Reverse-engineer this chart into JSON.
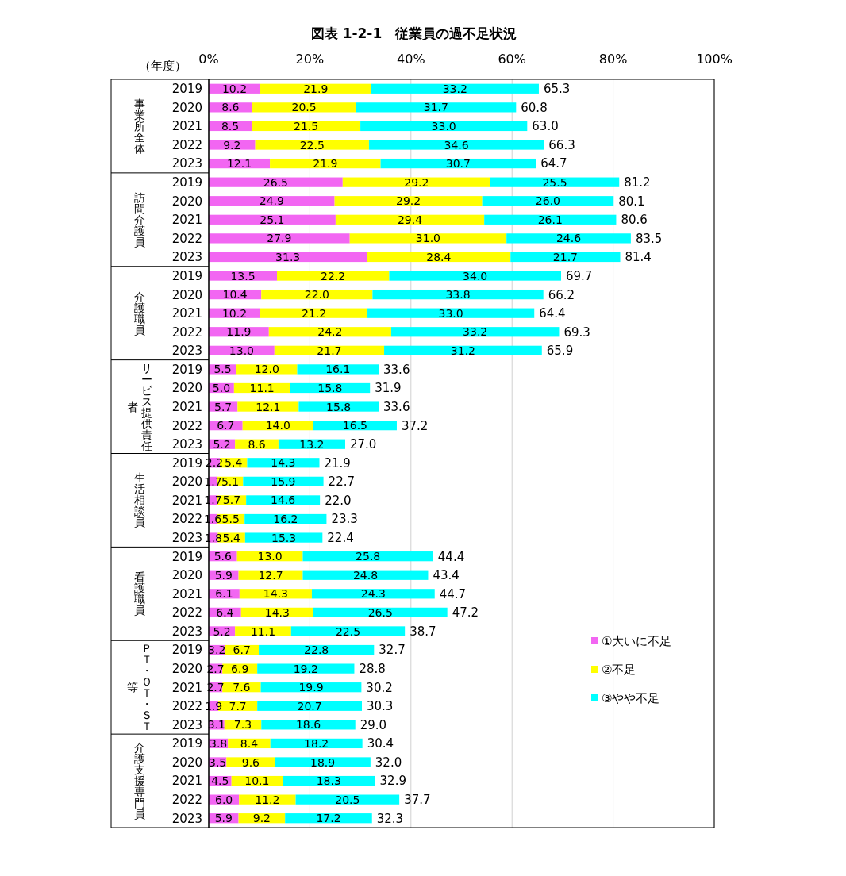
{
  "chart_data": {
    "type": "bar",
    "orientation": "horizontal",
    "stacked": true,
    "title": "図表 1-2-1　従業員の過不足状況",
    "ylabel": "（年度）",
    "categories": [
      "2019",
      "2020",
      "2021",
      "2022",
      "2023",
      "2019",
      "2020",
      "2021",
      "2022",
      "2023",
      "2019",
      "2020",
      "2021",
      "2022",
      "2023",
      "2019",
      "2020",
      "2021",
      "2022",
      "2023",
      "2019",
      "2020",
      "2021",
      "2022",
      "2023",
      "2019",
      "2020",
      "2021",
      "2022",
      "2023",
      "2019",
      "2020",
      "2021",
      "2022",
      "2023",
      "2019",
      "2020",
      "2021",
      "2022",
      "2023"
    ],
    "annotations": [
      "事業所全体",
      "訪問介護員",
      "介護職員",
      "サービス提供責任者",
      "生活相談員",
      "看護職員",
      "ＰＴ・ＯＴ・ＳＴ等",
      "介護支援専門員"
    ],
    "series": [
      {
        "name": "①大いに不足",
        "color": "#f266f2",
        "values": [
          10.2,
          8.6,
          8.5,
          9.2,
          12.1,
          26.5,
          24.9,
          25.1,
          27.9,
          31.3,
          13.5,
          10.4,
          10.2,
          11.9,
          13.0,
          5.5,
          5.0,
          5.7,
          6.7,
          5.2,
          2.2,
          1.7,
          1.7,
          1.6,
          1.8,
          5.6,
          5.9,
          6.1,
          6.4,
          5.2,
          3.2,
          2.7,
          2.7,
          1.9,
          3.1,
          3.8,
          3.5,
          4.5,
          6.0,
          5.9
        ],
        "value_labels": [
          "10.2",
          "8.6",
          "8.5",
          "9.2",
          "12.1",
          "26.5",
          "24.9",
          "25.1",
          "27.9",
          "31.3",
          "13.5",
          "10.4",
          "10.2",
          "11.9",
          "13.0",
          "5.5",
          "5.0",
          "5.7",
          "6.7",
          "5.2",
          "2.2",
          "1.7",
          "1.7",
          "1.6",
          "1.8",
          "5.6",
          "5.9",
          "6.1",
          "6.4",
          "5.2",
          "3.2",
          "2.7",
          "2.7",
          "1.9",
          "3.1",
          "3.8",
          "3.5",
          "4.5",
          "6.0",
          "5.9"
        ]
      },
      {
        "name": "②不足",
        "color": "#ffff00",
        "values": [
          21.9,
          20.5,
          21.5,
          22.5,
          21.9,
          29.2,
          29.2,
          29.4,
          31.0,
          28.4,
          22.2,
          22.0,
          21.2,
          24.2,
          21.7,
          12.0,
          11.1,
          12.1,
          14.0,
          8.6,
          5.4,
          5.1,
          5.7,
          5.5,
          5.4,
          13.0,
          12.7,
          14.3,
          14.3,
          11.1,
          6.7,
          6.9,
          7.6,
          7.7,
          7.3,
          8.4,
          9.6,
          10.1,
          11.2,
          9.2
        ],
        "value_labels": [
          "21.9",
          "20.5",
          "21.5",
          "22.5",
          "21.9",
          "29.2",
          "29.2",
          "29.4",
          "31.0",
          "28.4",
          "22.2",
          "22.0",
          "21.2",
          "24.2",
          "21.7",
          "12.0",
          "11.1",
          "12.1",
          "14.0",
          "8.6",
          "5.4",
          "5.1",
          "5.7",
          "5.5",
          "5.4",
          "13.0",
          "12.7",
          "14.3",
          "14.3",
          "11.1",
          "6.7",
          "6.9",
          "7.6",
          "7.7",
          "7.3",
          "8.4",
          "9.6",
          "10.1",
          "11.2",
          "9.2"
        ]
      },
      {
        "name": "③やや不足",
        "color": "#00ffff",
        "values": [
          33.2,
          31.7,
          33.0,
          34.6,
          30.7,
          25.5,
          26.0,
          26.1,
          24.6,
          21.7,
          34.0,
          33.8,
          33.0,
          33.2,
          31.2,
          16.1,
          15.8,
          15.8,
          16.5,
          13.2,
          14.3,
          15.9,
          14.6,
          16.2,
          15.3,
          25.8,
          24.8,
          24.3,
          26.5,
          22.5,
          22.8,
          19.2,
          19.9,
          20.7,
          18.6,
          18.2,
          18.9,
          18.3,
          20.5,
          17.2
        ],
        "value_labels": [
          "33.2",
          "31.7",
          "33.0",
          "34.6",
          "30.7",
          "25.5",
          "26.0",
          "26.1",
          "24.6",
          "21.7",
          "34.0",
          "33.8",
          "33.0",
          "33.2",
          "31.2",
          "16.1",
          "15.8",
          "15.8",
          "16.5",
          "13.2",
          "14.3",
          "15.9",
          "14.6",
          "16.2",
          "15.3",
          "25.8",
          "24.8",
          "24.3",
          "26.5",
          "22.5",
          "22.8",
          "19.2",
          "19.9",
          "20.7",
          "18.6",
          "18.2",
          "18.9",
          "18.3",
          "20.5",
          "17.2"
        ]
      }
    ],
    "totals": [
      "65.3",
      "60.8",
      "63.0",
      "66.3",
      "64.7",
      "81.2",
      "80.1",
      "80.6",
      "83.5",
      "81.4",
      "69.7",
      "66.2",
      "64.4",
      "69.3",
      "65.9",
      "33.6",
      "31.9",
      "33.6",
      "37.2",
      "27.0",
      "21.9",
      "22.7",
      "22.0",
      "23.3",
      "22.4",
      "44.4",
      "43.4",
      "44.7",
      "47.2",
      "38.7",
      "32.7",
      "28.8",
      "30.2",
      "30.3",
      "29.0",
      "30.4",
      "32.0",
      "32.9",
      "37.7",
      "32.3"
    ],
    "xlim": [
      0,
      100
    ],
    "xticks": [
      {
        "value": 0,
        "label": "0%"
      },
      {
        "value": 20,
        "label": "20%"
      },
      {
        "value": 40,
        "label": "40%"
      },
      {
        "value": 60,
        "label": "60%"
      },
      {
        "value": 80,
        "label": "80%"
      },
      {
        "value": 100,
        "label": "100%"
      }
    ],
    "grid": "x",
    "legend": "bottom right"
  }
}
